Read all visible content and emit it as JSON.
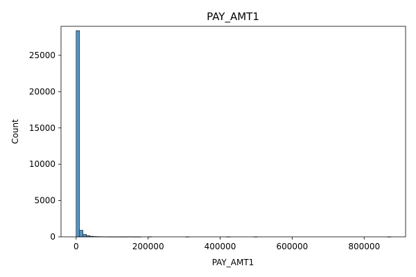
{
  "chart_data": {
    "type": "bar",
    "title": "PAY_AMT1",
    "xlabel": "PAY_AMT1",
    "ylabel": "Count",
    "xlim": [
      -42000,
      915000
    ],
    "ylim": [
      0,
      29000
    ],
    "xticks": [
      0,
      200000,
      400000,
      600000,
      800000
    ],
    "xtick_labels": [
      "0",
      "200000",
      "400000",
      "600000",
      "800000"
    ],
    "yticks": [
      0,
      5000,
      10000,
      15000,
      20000,
      25000
    ],
    "ytick_labels": [
      "0",
      "5000",
      "10000",
      "15000",
      "20000",
      "25000"
    ],
    "bin_width": 9500,
    "bins": [
      {
        "x0": 0,
        "count": 28400
      },
      {
        "x0": 9500,
        "count": 900
      },
      {
        "x0": 19000,
        "count": 330
      },
      {
        "x0": 28500,
        "count": 170
      },
      {
        "x0": 38000,
        "count": 80
      },
      {
        "x0": 47500,
        "count": 45
      },
      {
        "x0": 57000,
        "count": 30
      },
      {
        "x0": 66500,
        "count": 22
      },
      {
        "x0": 76000,
        "count": 12
      },
      {
        "x0": 85500,
        "count": 8
      },
      {
        "x0": 95000,
        "count": 5
      },
      {
        "x0": 104500,
        "count": 4
      },
      {
        "x0": 114000,
        "count": 3
      },
      {
        "x0": 123500,
        "count": 2
      },
      {
        "x0": 133000,
        "count": 2
      },
      {
        "x0": 142500,
        "count": 25
      },
      {
        "x0": 152000,
        "count": 3
      },
      {
        "x0": 161500,
        "count": 2
      },
      {
        "x0": 171000,
        "count": 1
      },
      {
        "x0": 199500,
        "count": 1
      },
      {
        "x0": 304000,
        "count": 1
      },
      {
        "x0": 418000,
        "count": 1
      },
      {
        "x0": 494000,
        "count": 1
      },
      {
        "x0": 864500,
        "count": 1
      }
    ],
    "grid": false,
    "colors": {
      "bar_fill": "#4c8fc4",
      "bar_edge": "#222222"
    }
  }
}
